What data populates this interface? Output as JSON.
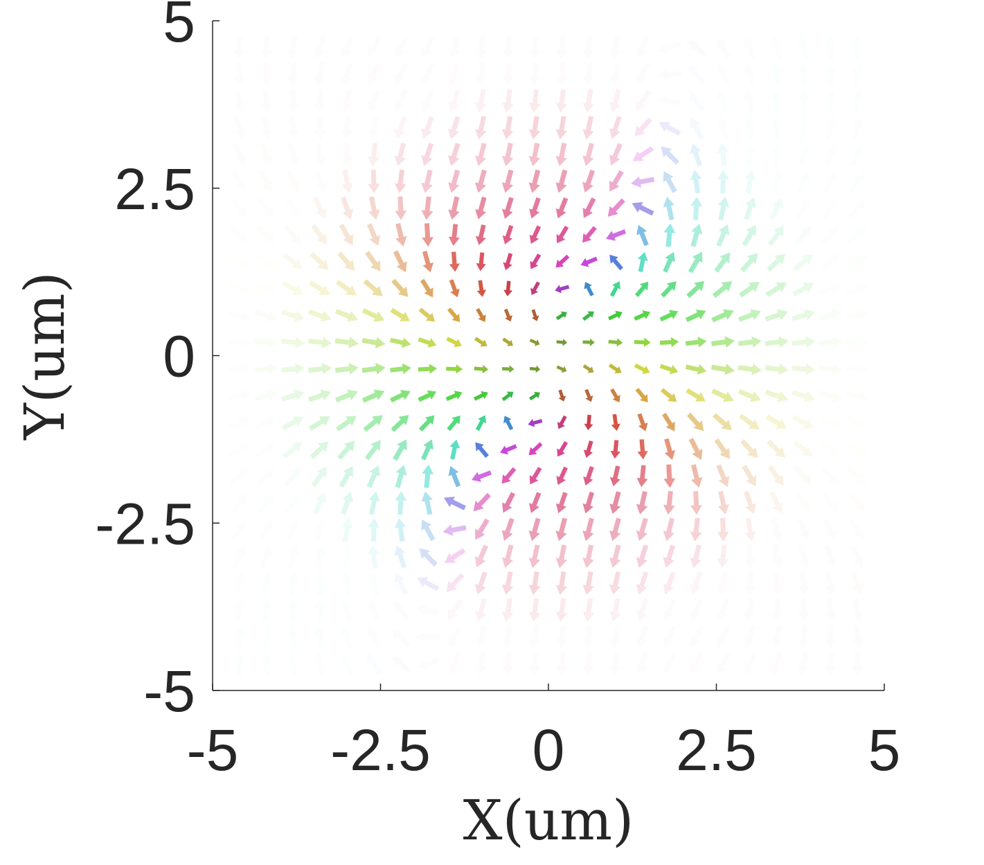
{
  "chart_data": {
    "type": "quiver",
    "title": "",
    "xlabel": "X(um)",
    "ylabel": "Y(um)",
    "xlim": [
      -5,
      5
    ],
    "ylim": [
      -5,
      5
    ],
    "xticks": [
      -5,
      -2.5,
      0,
      2.5,
      5
    ],
    "yticks": [
      -5,
      -2.5,
      0,
      2.5,
      5
    ],
    "xtick_labels": [
      "-5",
      "-2.5",
      "0",
      "2.5",
      "5"
    ],
    "ytick_labels": [
      "-5",
      "-2.5",
      "0",
      "2.5",
      "5"
    ],
    "grid": false,
    "legend": "none",
    "box": "left-bottom axes only",
    "field": {
      "description_of_marks": "3D spin-texture arrows on a square grid, hue encodes in-plane angle, opacity fades toward edges",
      "grid_x_min": -4.6,
      "grid_x_max": 4.6,
      "grid_y_min": -4.6,
      "grid_y_max": 4.6,
      "grid_step": 0.4
    },
    "colors": {
      "axis": "#262626",
      "text": "#262626"
    }
  }
}
